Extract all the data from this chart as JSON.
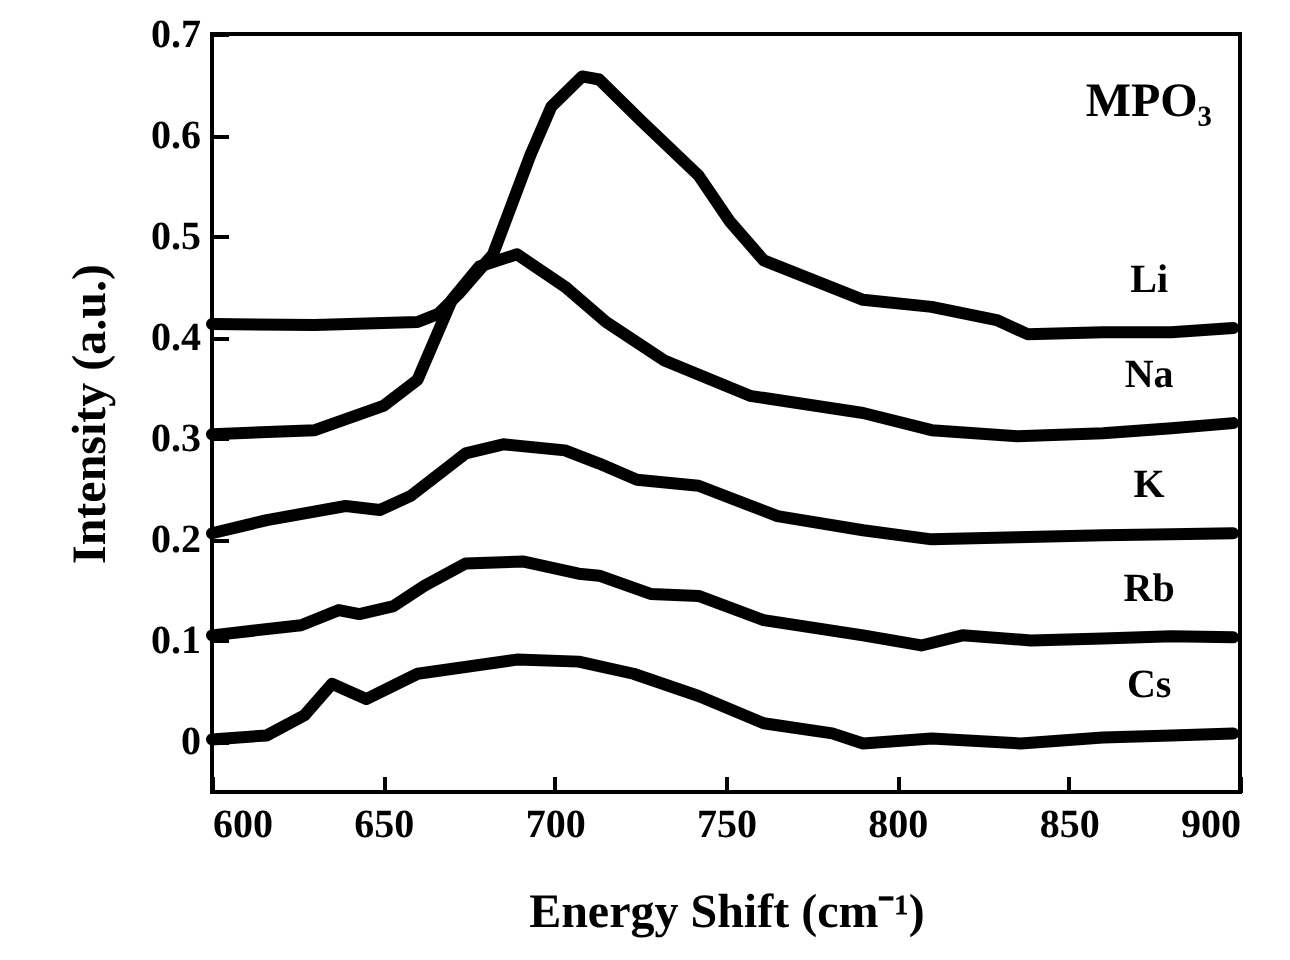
{
  "chart_data": {
    "type": "line",
    "xlabel": "Energy Shift (cm⁻¹)",
    "ylabel": "Intensity (a.u.)",
    "annotations": [
      "MPO₃"
    ],
    "xlim": [
      600,
      900
    ],
    "ylim": [
      -0.05,
      0.7
    ],
    "xticks": [
      600,
      650,
      700,
      750,
      800,
      850,
      900
    ],
    "yticks": [
      0,
      0.1,
      0.2,
      0.3,
      0.4,
      0.5,
      0.6,
      0.7
    ],
    "line_style": "solid",
    "series": [
      {
        "name": "Li",
        "color": "#000000",
        "x": [
          600,
          630,
          660,
          666,
          672,
          682,
          693,
          699,
          708,
          713,
          725,
          742,
          751,
          761,
          790,
          810,
          829,
          838,
          860,
          880,
          898
        ],
        "values": [
          0.413,
          0.412,
          0.415,
          0.423,
          0.443,
          0.482,
          0.581,
          0.628,
          0.658,
          0.655,
          0.615,
          0.56,
          0.515,
          0.476,
          0.437,
          0.43,
          0.417,
          0.403,
          0.405,
          0.405,
          0.409
        ]
      },
      {
        "name": "Na",
        "color": "#000000",
        "x": [
          600,
          630,
          650,
          660,
          670,
          678,
          689,
          703,
          715,
          732,
          757,
          790,
          810,
          835,
          860,
          880,
          898
        ],
        "values": [
          0.304,
          0.308,
          0.332,
          0.358,
          0.437,
          0.47,
          0.482,
          0.45,
          0.415,
          0.377,
          0.342,
          0.325,
          0.308,
          0.302,
          0.305,
          0.31,
          0.315
        ]
      },
      {
        "name": "K",
        "color": "#000000",
        "x": [
          600,
          616,
          639,
          649,
          658,
          674,
          685,
          703,
          713,
          724,
          742,
          765,
          790,
          810,
          835,
          860,
          880,
          898
        ],
        "values": [
          0.206,
          0.219,
          0.233,
          0.229,
          0.243,
          0.285,
          0.294,
          0.288,
          0.275,
          0.259,
          0.253,
          0.223,
          0.209,
          0.2,
          0.202,
          0.204,
          0.205,
          0.206
        ]
      },
      {
        "name": "Rb",
        "color": "#000000",
        "x": [
          600,
          626,
          637,
          643,
          653,
          662,
          674,
          691,
          707,
          713,
          728,
          742,
          761,
          790,
          807,
          819,
          839,
          860,
          880,
          898
        ],
        "values": [
          0.105,
          0.115,
          0.13,
          0.126,
          0.134,
          0.154,
          0.176,
          0.178,
          0.166,
          0.164,
          0.146,
          0.144,
          0.12,
          0.105,
          0.095,
          0.105,
          0.1,
          0.102,
          0.104,
          0.103
        ]
      },
      {
        "name": "Cs",
        "color": "#000000",
        "x": [
          600,
          616,
          627,
          635,
          645,
          660,
          689,
          707,
          723,
          742,
          761,
          781,
          790,
          810,
          836,
          860,
          880,
          898
        ],
        "values": [
          0.002,
          0.006,
          0.026,
          0.057,
          0.042,
          0.067,
          0.081,
          0.079,
          0.067,
          0.045,
          0.018,
          0.008,
          -0.002,
          0.003,
          -0.002,
          0.004,
          0.006,
          0.008
        ]
      }
    ]
  }
}
